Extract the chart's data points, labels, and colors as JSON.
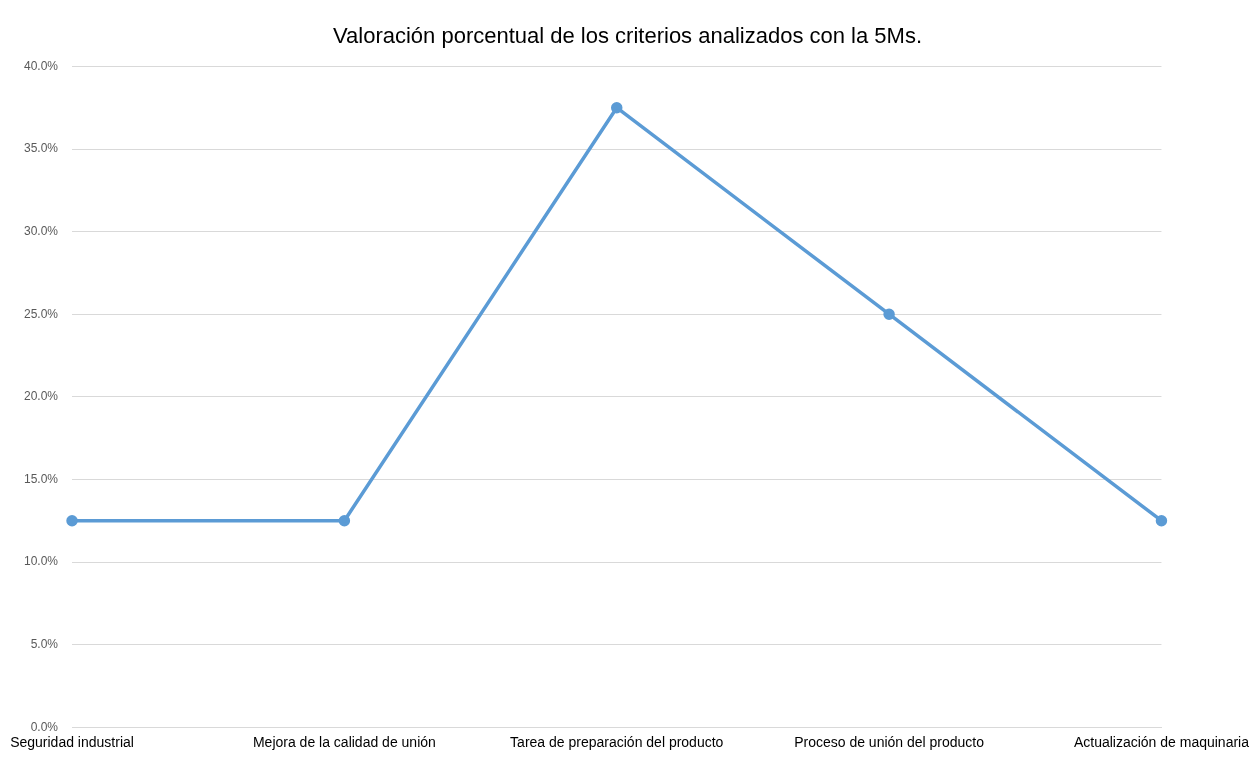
{
  "chart_data": {
    "type": "line",
    "title": "Valoración porcentual de los criterios analizados con la 5Ms.",
    "categories": [
      "Seguridad industrial",
      "Mejora de la calidad de unión",
      "Tarea de preparación del producto",
      "Proceso de unión del producto",
      "Actualización de maquinaria"
    ],
    "series": [
      {
        "color": "#5b9bd5",
        "values": [
          12.5,
          12.5,
          37.5,
          25,
          12.5
        ]
      }
    ],
    "ylim": [
      0,
      40
    ],
    "yticks": [
      {
        "value": 0,
        "label": "0.0%"
      },
      {
        "value": 5,
        "label": "5.0%"
      },
      {
        "value": 10,
        "label": "10.0%"
      },
      {
        "value": 15,
        "label": "15.0%"
      },
      {
        "value": 20,
        "label": "20.0%"
      },
      {
        "value": 25,
        "label": "25.0%"
      },
      {
        "value": 30,
        "label": "30.0%"
      },
      {
        "value": 35,
        "label": "35.0%"
      },
      {
        "value": 40,
        "label": "40.0%"
      }
    ],
    "grid": "y",
    "legend": false,
    "marker": "circle",
    "line_style": "solid"
  }
}
